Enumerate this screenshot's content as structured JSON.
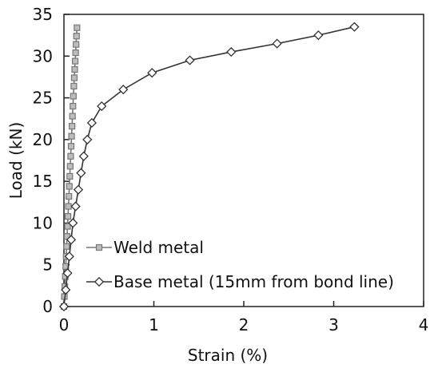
{
  "chart_data": {
    "type": "line",
    "xlabel": "Strain (%)",
    "ylabel": "Load (kN)",
    "xlim": [
      0,
      4
    ],
    "ylim": [
      0,
      35
    ],
    "xticks": [
      0,
      1,
      2,
      3,
      4
    ],
    "yticks": [
      0,
      5,
      10,
      15,
      20,
      25,
      30,
      35
    ],
    "xtick_labels": [
      "0",
      "1",
      "2",
      "3",
      "4"
    ],
    "ytick_labels": [
      "0",
      "5",
      "10",
      "15",
      "20",
      "25",
      "30",
      "35"
    ],
    "grid": false,
    "legend_position": "bottom-left",
    "series": [
      {
        "name": "Weld metal",
        "marker": "square",
        "color": "#777777",
        "x": [
          0,
          0.005,
          0.01,
          0.015,
          0.02,
          0.025,
          0.03,
          0.035,
          0.04,
          0.045,
          0.05,
          0.055,
          0.06,
          0.065,
          0.07,
          0.075,
          0.08,
          0.085,
          0.09,
          0.095,
          0.1,
          0.105,
          0.11,
          0.115,
          0.12,
          0.125,
          0.13,
          0.135,
          0.14,
          0.145
        ],
        "y": [
          0,
          1.2,
          2.4,
          3.6,
          4.8,
          6,
          7.2,
          8.4,
          9.6,
          10.8,
          12,
          13.2,
          14.4,
          15.6,
          16.8,
          18,
          19.2,
          20.4,
          21.6,
          22.8,
          24,
          25.2,
          26.4,
          27.4,
          28.4,
          29.4,
          30.4,
          31.4,
          32.4,
          33.4
        ]
      },
      {
        "name": "Base metal (15mm from bond line)",
        "marker": "diamond",
        "color": "#333333",
        "x": [
          0,
          0.02,
          0.04,
          0.06,
          0.08,
          0.1,
          0.13,
          0.16,
          0.19,
          0.22,
          0.26,
          0.31,
          0.42,
          0.66,
          0.98,
          1.4,
          1.86,
          2.37,
          2.83,
          3.23
        ],
        "y": [
          0,
          2,
          4,
          6,
          8,
          10,
          12,
          14,
          16,
          18,
          20,
          22,
          24,
          26,
          28,
          29.5,
          30.5,
          31.5,
          32.5,
          33.5
        ]
      }
    ]
  }
}
